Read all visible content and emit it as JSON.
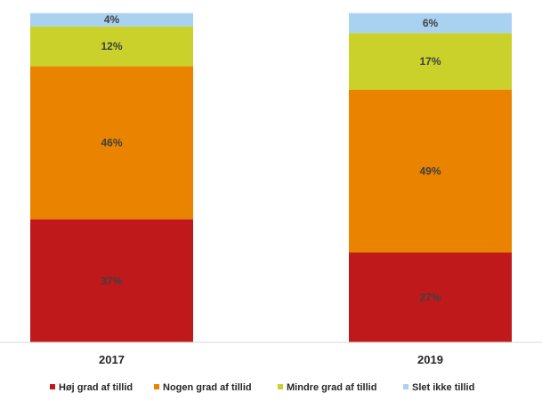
{
  "chart_data": {
    "type": "bar",
    "stacked": true,
    "categories": [
      "2017",
      "2019"
    ],
    "series": [
      {
        "name": "Høj grad af tillid",
        "color": "#c0191b",
        "values": [
          37,
          27
        ],
        "labels": [
          "37%",
          "27%"
        ]
      },
      {
        "name": "Nogen grad af tillid",
        "color": "#e98300",
        "values": [
          46,
          49
        ],
        "labels": [
          "46%",
          "49%"
        ]
      },
      {
        "name": "Mindre grad af tillid",
        "color": "#c9d12a",
        "values": [
          12,
          17
        ],
        "labels": [
          "12%",
          "17%"
        ]
      },
      {
        "name": "Slet ikke tillid",
        "color": "#a9d2f0",
        "values": [
          4,
          6
        ],
        "labels": [
          "4%",
          "6%"
        ]
      }
    ],
    "legend_position": "bottom",
    "grid": false
  }
}
